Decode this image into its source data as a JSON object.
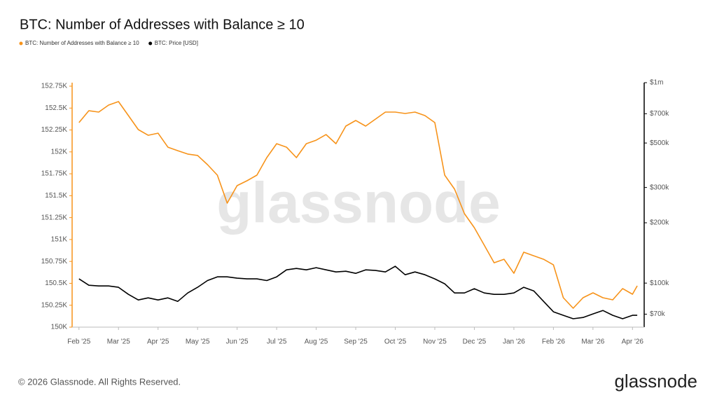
{
  "chart_data": {
    "type": "line",
    "title": "BTC: Number of Addresses with Balance ≥ 10",
    "x": [
      0,
      0.25,
      0.5,
      0.75,
      1,
      1.25,
      1.5,
      1.75,
      2,
      2.25,
      2.5,
      2.75,
      3,
      3.25,
      3.5,
      3.75,
      4,
      4.25,
      4.5,
      4.75,
      5,
      5.25,
      5.5,
      5.75,
      6,
      6.25,
      6.5,
      6.75,
      7,
      7.25,
      7.5,
      7.75,
      8,
      8.25,
      8.5,
      8.75,
      9,
      9.25,
      9.5,
      9.75,
      10,
      10.25,
      10.5,
      10.75,
      11,
      11.25,
      11.5,
      11.75,
      12,
      12.25,
      12.5,
      12.75,
      13,
      13.25,
      13.5,
      13.75,
      14,
      14.12
    ],
    "series": [
      {
        "name": "BTC: Number of Addresses with Balance ≥ 10",
        "color": "#f7931a",
        "axis": "y",
        "values": [
          152334,
          152470,
          152454,
          152534,
          152574,
          152414,
          152254,
          152190,
          152214,
          152054,
          152014,
          151975,
          151959,
          151855,
          151735,
          151415,
          151615,
          151671,
          151735,
          151935,
          152094,
          152054,
          151935,
          152094,
          152134,
          152198,
          152094,
          152294,
          152358,
          152294,
          152374,
          152454,
          152454,
          152438,
          152454,
          152414,
          152334,
          151735,
          151575,
          151295,
          151135,
          150935,
          150735,
          150775,
          150615,
          150855,
          150815,
          150775,
          150711,
          150336,
          150216,
          150336,
          150392,
          150336,
          150312,
          150440,
          150376,
          150472
        ]
      },
      {
        "name": "BTC: Price [USD]",
        "color": "#000000",
        "axis": "y2",
        "values": [
          105000,
          97600,
          96800,
          96800,
          95300,
          87900,
          82400,
          84400,
          82400,
          84400,
          81100,
          89300,
          95300,
          103000,
          107500,
          107500,
          105800,
          105000,
          105000,
          103000,
          107500,
          116500,
          118400,
          116500,
          119400,
          116500,
          113700,
          114600,
          111900,
          116500,
          115600,
          113700,
          121300,
          110100,
          113700,
          110100,
          105000,
          99200,
          89300,
          89300,
          93800,
          89300,
          87900,
          87900,
          89300,
          95300,
          91500,
          81100,
          71900,
          69100,
          66400,
          67400,
          70200,
          73000,
          69100,
          66400,
          69100,
          69100
        ]
      }
    ],
    "xlim": [
      -0.12,
      14.26
    ],
    "xticks": [
      {
        "value": 0,
        "label": "Feb '25"
      },
      {
        "value": 1,
        "label": "Mar '25"
      },
      {
        "value": 2,
        "label": "Apr '25"
      },
      {
        "value": 3,
        "label": "May '25"
      },
      {
        "value": 4,
        "label": "Jun '25"
      },
      {
        "value": 5,
        "label": "Jul '25"
      },
      {
        "value": 6,
        "label": "Aug '25"
      },
      {
        "value": 7,
        "label": "Sep '25"
      },
      {
        "value": 8,
        "label": "Oct '25"
      },
      {
        "value": 9,
        "label": "Nov '25"
      },
      {
        "value": 10,
        "label": "Dec '25"
      },
      {
        "value": 11,
        "label": "Jan '26"
      },
      {
        "value": 12,
        "label": "Feb '26"
      },
      {
        "value": 13,
        "label": "Mar '26"
      },
      {
        "value": 14,
        "label": "Apr '26"
      }
    ],
    "ylim": [
      150000,
      152790
    ],
    "yticks": [
      {
        "value": 150000,
        "label": "150K"
      },
      {
        "value": 150250,
        "label": "150.25K"
      },
      {
        "value": 150500,
        "label": "150.5K"
      },
      {
        "value": 150750,
        "label": "150.75K"
      },
      {
        "value": 151000,
        "label": "151K"
      },
      {
        "value": 151250,
        "label": "151.25K"
      },
      {
        "value": 151500,
        "label": "151.5K"
      },
      {
        "value": 151750,
        "label": "151.75K"
      },
      {
        "value": 152000,
        "label": "152K"
      },
      {
        "value": 152250,
        "label": "152.25K"
      },
      {
        "value": 152500,
        "label": "152.5K"
      },
      {
        "value": 152750,
        "label": "152.75K"
      }
    ],
    "y2lim": [
      60300,
      1000000
    ],
    "y2_log": true,
    "y2ticks": [
      {
        "value": 70000,
        "label": "$70k"
      },
      {
        "value": 100000,
        "label": "$100k"
      },
      {
        "value": 200000,
        "label": "$200k"
      },
      {
        "value": 300000,
        "label": "$300k"
      },
      {
        "value": 500000,
        "label": "$500k"
      },
      {
        "value": 700000,
        "label": "$700k"
      },
      {
        "value": 1000000,
        "label": "$1m"
      }
    ],
    "legend": "top-left",
    "watermark": "glassnode"
  },
  "footer": {
    "copyright": "© 2026 Glassnode. All Rights Reserved.",
    "logo": "glassnode"
  }
}
